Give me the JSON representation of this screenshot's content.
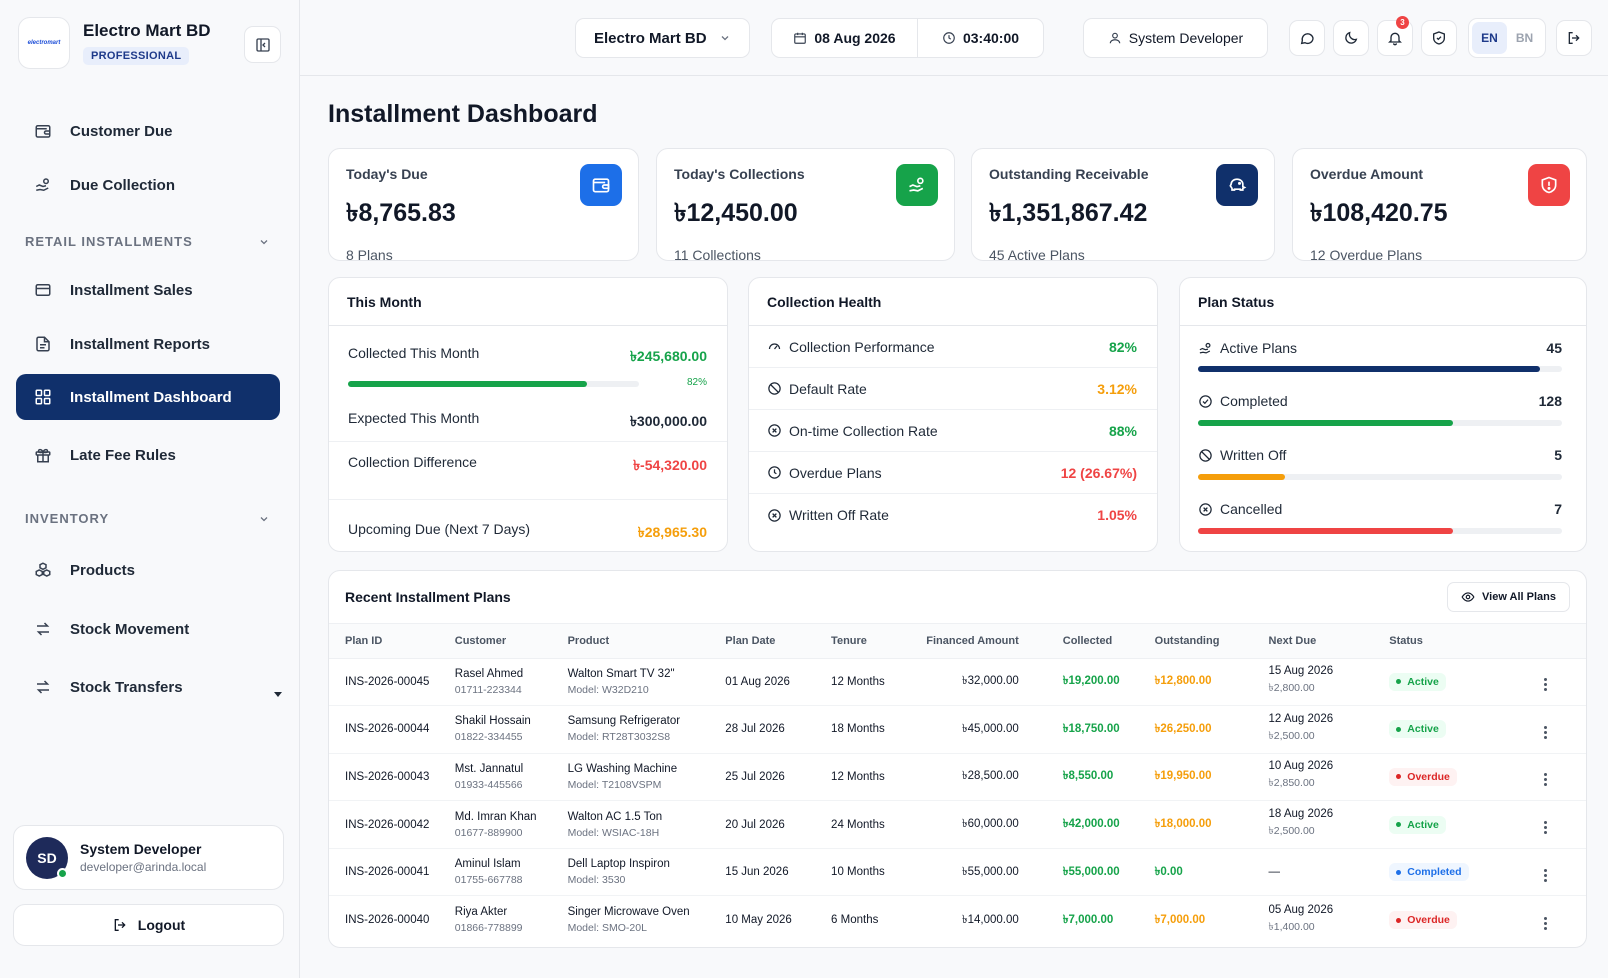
{
  "brand": {
    "name": "Electro Mart BD",
    "badge": "PROFESSIONAL",
    "logo_text": "electromart"
  },
  "sidebar": {
    "items": [
      {
        "label": "Customer Due",
        "icon": "wallet-icon"
      },
      {
        "label": "Due Collection",
        "icon": "hand-coins-icon"
      },
      {
        "label": "Installment Sales",
        "icon": "credit-card-icon"
      },
      {
        "label": "Installment Reports",
        "icon": "file-text-icon"
      },
      {
        "label": "Installment Dashboard",
        "icon": "grid-icon",
        "active": true
      },
      {
        "label": "Late Fee Rules",
        "icon": "gift-icon"
      },
      {
        "label": "Products",
        "icon": "boxes-icon"
      },
      {
        "label": "Stock Movement",
        "icon": "arrows-icon"
      },
      {
        "label": "Stock Transfers",
        "icon": "arrows-icon"
      }
    ],
    "sections": [
      "RETAIL INSTALLMENTS",
      "INVENTORY"
    ],
    "user": {
      "initials": "SD",
      "name": "System Developer",
      "email": "developer@arinda.local"
    },
    "logout_label": "Logout"
  },
  "topbar": {
    "store": "Electro Mart BD",
    "date": "08 Aug 2026",
    "time": "03:40:00",
    "user": "System Developer",
    "notifications": "3",
    "lang_en": "EN",
    "lang_bn": "BN"
  },
  "page_title": "Installment Dashboard",
  "kpis": [
    {
      "label": "Today's Due",
      "value": "৳8,765.83",
      "sub": "8 Plans",
      "color": "#1d6fe8",
      "icon": "wallet-icon"
    },
    {
      "label": "Today's Collections",
      "value": "৳12,450.00",
      "sub": "11 Collections",
      "color": "#16a34a",
      "icon": "hand-coins-icon"
    },
    {
      "label": "Outstanding Receivable",
      "value": "৳1,351,867.42",
      "sub": "45 Active Plans",
      "color": "#10306b",
      "icon": "piggy-bank-icon"
    },
    {
      "label": "Overdue Amount",
      "value": "৳108,420.75",
      "sub": "12 Overdue Plans",
      "color": "#ef4444",
      "icon": "shield-alert-icon"
    }
  ],
  "this_month": {
    "title": "This Month",
    "collected_label": "Collected This Month",
    "collected_value": "৳245,680.00",
    "progress_pct": 82,
    "progress_label": "82%",
    "expected_label": "Expected This Month",
    "expected_value": "৳300,000.00",
    "difference_label": "Collection Difference",
    "difference_value": "৳-54,320.00",
    "upcoming_label": "Upcoming Due (Next 7 Days)",
    "upcoming_value": "৳28,965.30"
  },
  "collection_health": {
    "title": "Collection Health",
    "rows": [
      {
        "label": "Collection Performance",
        "value": "82%",
        "color": "#16a34a",
        "icon": "gauge-icon"
      },
      {
        "label": "Default Rate",
        "value": "3.12%",
        "color": "#f59e0b",
        "icon": "ban-icon"
      },
      {
        "label": "On-time Collection Rate",
        "value": "88%",
        "color": "#16a34a",
        "icon": "x-circle-icon"
      },
      {
        "label": "Overdue Plans",
        "value": "12 (26.67%)",
        "color": "#ef4444",
        "icon": "clock-icon"
      },
      {
        "label": "Written Off Rate",
        "value": "1.05%",
        "color": "#ef4444",
        "icon": "x-circle-icon"
      }
    ]
  },
  "plan_status": {
    "title": "Plan Status",
    "rows": [
      {
        "label": "Active Plans",
        "value": "45",
        "fill": 0.94,
        "color": "#10306b",
        "icon": "hand-coins-icon"
      },
      {
        "label": "Completed",
        "value": "128",
        "fill": 0.7,
        "color": "#16a34a",
        "icon": "check-circle-icon"
      },
      {
        "label": "Written Off",
        "value": "5",
        "fill": 0.24,
        "color": "#f59e0b",
        "icon": "ban-icon"
      },
      {
        "label": "Cancelled",
        "value": "7",
        "fill": 0.7,
        "color": "#ef4444",
        "icon": "x-circle-icon"
      }
    ]
  },
  "table": {
    "title": "Recent Installment Plans",
    "view_all": "View All Plans",
    "columns": [
      "Plan ID",
      "Customer",
      "Product",
      "Plan Date",
      "Tenure",
      "Financed Amount",
      "Collected",
      "Outstanding",
      "Next Due",
      "Status"
    ],
    "rows": [
      {
        "id": "INS-2026-00045",
        "customer": "Rasel Ahmed",
        "phone": "01711-223344",
        "product": "Walton Smart TV 32\"",
        "model": "Model: W32D210",
        "date": "01 Aug 2026",
        "tenure": "12 Months",
        "financed": "৳32,000.00",
        "collected": "৳19,200.00",
        "outstanding": "৳12,800.00",
        "next_due": "15 Aug 2026",
        "next_amt": "৳2,800.00",
        "status": "Active"
      },
      {
        "id": "INS-2026-00044",
        "customer": "Shakil Hossain",
        "phone": "01822-334455",
        "product": "Samsung Refrigerator",
        "model": "Model: RT28T3032S8",
        "date": "28 Jul 2026",
        "tenure": "18 Months",
        "financed": "৳45,000.00",
        "collected": "৳18,750.00",
        "outstanding": "৳26,250.00",
        "next_due": "12 Aug 2026",
        "next_amt": "৳2,500.00",
        "status": "Active"
      },
      {
        "id": "INS-2026-00043",
        "customer": "Mst. Jannatul",
        "phone": "01933-445566",
        "product": "LG Washing Machine",
        "model": "Model: T2108VSPM",
        "date": "25 Jul 2026",
        "tenure": "12 Months",
        "financed": "৳28,500.00",
        "collected": "৳8,550.00",
        "outstanding": "৳19,950.00",
        "next_due": "10 Aug 2026",
        "next_amt": "৳2,850.00",
        "status": "Overdue"
      },
      {
        "id": "INS-2026-00042",
        "customer": "Md. Imran Khan",
        "phone": "01677-889900",
        "product": "Walton AC 1.5 Ton",
        "model": "Model: WSIAC-18H",
        "date": "20 Jul 2026",
        "tenure": "24 Months",
        "financed": "৳60,000.00",
        "collected": "৳42,000.00",
        "outstanding": "৳18,000.00",
        "next_due": "18 Aug 2026",
        "next_amt": "৳2,500.00",
        "status": "Active"
      },
      {
        "id": "INS-2026-00041",
        "customer": "Aminul Islam",
        "phone": "01755-667788",
        "product": "Dell Laptop Inspiron",
        "model": "Model: 3530",
        "date": "15 Jun 2026",
        "tenure": "10 Months",
        "financed": "৳55,000.00",
        "collected": "৳55,000.00",
        "outstanding": "৳0.00",
        "next_due": "—",
        "next_amt": "",
        "status": "Completed"
      },
      {
        "id": "INS-2026-00040",
        "customer": "Riya Akter",
        "phone": "01866-778899",
        "product": "Singer Microwave Oven",
        "model": "Model: SMO-20L",
        "date": "10 May 2026",
        "tenure": "6 Months",
        "financed": "৳14,000.00",
        "collected": "৳7,000.00",
        "outstanding": "৳7,000.00",
        "next_due": "05 Aug 2026",
        "next_amt": "৳1,400.00",
        "status": "Overdue"
      }
    ],
    "status_colors": {
      "Active": {
        "fg": "#16a34a",
        "bg": "#ecfdf3"
      },
      "Overdue": {
        "fg": "#dc2626",
        "bg": "#fef2f2"
      },
      "Completed": {
        "fg": "#1d6fe8",
        "bg": "#eff6ff"
      }
    }
  }
}
